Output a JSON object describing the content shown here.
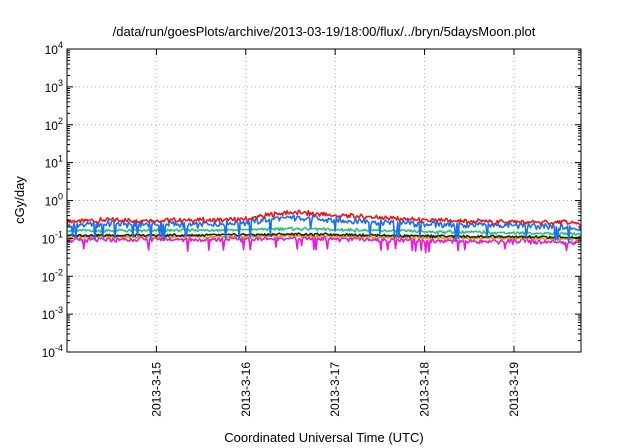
{
  "chart_data": {
    "type": "line",
    "title": "/data/run/goesPlots/archive/2013-03-19/18:00/flux/../bryn/5daysMoon.plot",
    "xlabel": "Coordinated Universal Time (UTC)",
    "ylabel": "cGy/day",
    "yscale": "log",
    "ylim_exp": [
      -4,
      4
    ],
    "y_ticks": [
      {
        "base": "10",
        "exp": "-4"
      },
      {
        "base": "10",
        "exp": "-3"
      },
      {
        "base": "10",
        "exp": "-2"
      },
      {
        "base": "10",
        "exp": "-1"
      },
      {
        "base": "10",
        "exp": "0"
      },
      {
        "base": "10",
        "exp": "1"
      },
      {
        "base": "10",
        "exp": "2"
      },
      {
        "base": "10",
        "exp": "3"
      },
      {
        "base": "10",
        "exp": "4"
      }
    ],
    "xlim_days": [
      14.0,
      19.75
    ],
    "x_ticks": [
      {
        "label": "2013-3-15",
        "day": 15
      },
      {
        "label": "2013-3-16",
        "day": 16
      },
      {
        "label": "2013-3-17",
        "day": 17
      },
      {
        "label": "2013-3-18",
        "day": 18
      },
      {
        "label": "2013-3-19",
        "day": 19
      }
    ],
    "grid": true,
    "series": [
      {
        "color": "#e8191d",
        "days": [
          14.0,
          14.5,
          15.0,
          15.5,
          16.0,
          16.3,
          16.5,
          16.8,
          17.0,
          17.5,
          18.0,
          18.5,
          19.0,
          19.5,
          19.75
        ],
        "values": [
          0.28,
          0.3,
          0.3,
          0.3,
          0.32,
          0.42,
          0.48,
          0.44,
          0.4,
          0.36,
          0.3,
          0.28,
          0.27,
          0.26,
          0.25
        ]
      },
      {
        "color": "#1e6fe8",
        "days": [
          14.0,
          14.5,
          15.0,
          15.5,
          16.0,
          16.3,
          16.5,
          16.8,
          17.0,
          17.5,
          18.0,
          18.5,
          19.0,
          19.5,
          19.75
        ],
        "values": [
          0.22,
          0.24,
          0.24,
          0.23,
          0.26,
          0.32,
          0.36,
          0.33,
          0.3,
          0.27,
          0.24,
          0.22,
          0.22,
          0.2,
          0.18
        ]
      },
      {
        "color": "#1fc77a",
        "days": [
          14.0,
          15.0,
          16.0,
          16.5,
          17.0,
          18.0,
          19.0,
          19.75
        ],
        "values": [
          0.16,
          0.16,
          0.17,
          0.18,
          0.17,
          0.15,
          0.14,
          0.13
        ]
      },
      {
        "color": "#222222",
        "days": [
          14.0,
          15.0,
          16.0,
          16.5,
          17.0,
          18.0,
          19.0,
          19.75
        ],
        "values": [
          0.12,
          0.12,
          0.125,
          0.13,
          0.125,
          0.115,
          0.11,
          0.105
        ]
      },
      {
        "color": "#e0a000",
        "days": [
          14.0,
          15.0,
          16.0,
          16.5,
          17.0,
          18.0,
          19.0,
          19.75
        ],
        "values": [
          0.11,
          0.11,
          0.112,
          0.118,
          0.112,
          0.105,
          0.1,
          0.095
        ]
      },
      {
        "color": "#e81ad6",
        "days": [
          14.0,
          14.5,
          15.0,
          15.5,
          16.0,
          16.5,
          17.0,
          17.5,
          18.0,
          18.5,
          19.0,
          19.5,
          19.75
        ],
        "values": [
          0.09,
          0.092,
          0.095,
          0.093,
          0.096,
          0.1,
          0.096,
          0.092,
          0.088,
          0.086,
          0.083,
          0.08,
          0.078
        ]
      }
    ]
  }
}
